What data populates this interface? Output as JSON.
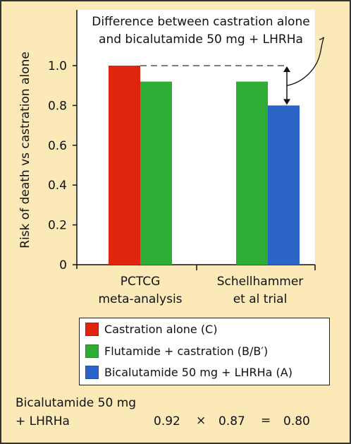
{
  "chart_data": {
    "type": "bar",
    "ylabel": "Risk of death vs castration alone",
    "yticks": [
      "0",
      "0.2",
      "0.4",
      "0.6",
      "0.8",
      "1.0"
    ],
    "ylim": [
      0,
      1.0
    ],
    "categories": [
      "PCTCG meta-analysis",
      "Schellhammer et al trial"
    ],
    "category_lines": [
      [
        "PCTCG",
        "meta-analysis"
      ],
      [
        "Schellhammer",
        "et al trial"
      ]
    ],
    "series": [
      {
        "name": "Castration alone (C)",
        "color": "#e0250f",
        "values": [
          1.0,
          null
        ]
      },
      {
        "name": "Flutamide + castration (B/B′)",
        "color": "#2fac33",
        "values": [
          0.92,
          0.92
        ]
      },
      {
        "name": "Bicalutamide 50 mg + LHRHa (A)",
        "color": "#2a64c6",
        "values": [
          null,
          0.8
        ]
      }
    ],
    "annotation": {
      "lines": [
        "Difference between castration alone",
        "and bicalutamide 50 mg + LHRHa"
      ],
      "from_value": 1.0,
      "to_value": 0.8
    },
    "grid": false
  },
  "legend": {
    "items": [
      {
        "label": "Castration alone (C)",
        "color": "#e0250f"
      },
      {
        "label": "Flutamide + castration (B/B′)",
        "color": "#2fac33"
      },
      {
        "label": "Bicalutamide 50 mg + LHRHa (A)",
        "color": "#2a64c6"
      }
    ]
  },
  "formula": {
    "line1": "Bicalutamide 50 mg",
    "line2": "+ LHRHa",
    "a": "0.92",
    "times": "×",
    "b": "0.87",
    "equals": "=",
    "result": "0.80"
  }
}
